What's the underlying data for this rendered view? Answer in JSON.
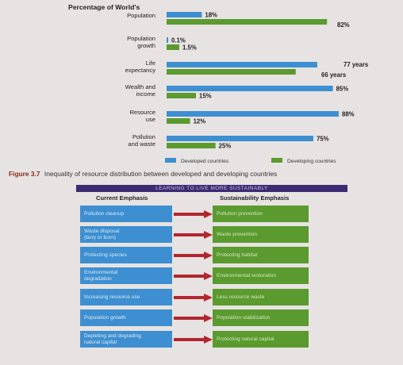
{
  "chart_data": {
    "type": "bar",
    "orientation": "horizontal",
    "title": "Percentage of World's",
    "categories": [
      "Population",
      "Population\ngrowth",
      "Life\nexpectancy",
      "Wealth and\nincome",
      "Resource\nuse",
      "Pollution\nand waste"
    ],
    "series": [
      {
        "name": "Developed countries",
        "color": "#3d8fd1",
        "values": [
          18,
          0.1,
          77,
          85,
          88,
          75
        ],
        "labels": [
          "18%",
          "0.1%",
          "77 years",
          "85%",
          "88%",
          "75%"
        ]
      },
      {
        "name": "Developing countries",
        "color": "#5a9a2f",
        "values": [
          82,
          1.5,
          66,
          15,
          12,
          25
        ],
        "labels": [
          "82%",
          "1.5%",
          "66 years",
          "15%",
          "12%",
          "25%"
        ]
      }
    ],
    "legend_position": "bottom"
  },
  "figure_caption": {
    "number": "Figure 3.7",
    "text": "Inequality of resource distribution between developed and developing countries"
  },
  "diagram": {
    "banner": "LEARNING TO LIVE MORE SUSTAINABLY",
    "current_heading": "Current Emphasis",
    "sustainability_heading": "Sustainability Emphasis",
    "rows": [
      {
        "current": "Pollution cleanup",
        "sustainable": "Pollution prevention"
      },
      {
        "current": "Waste disposal\n(bury or burn)",
        "sustainable": "Waste prevention"
      },
      {
        "current": "Protecting species",
        "sustainable": "Protecting habitat"
      },
      {
        "current": "Environmental\ndegradation",
        "sustainable": "Environmental restoration"
      },
      {
        "current": "Increasing resource use",
        "sustainable": "Less resource waste"
      },
      {
        "current": "Population growth",
        "sustainable": "Population stabilization"
      },
      {
        "current": "Depleting and degrading\nnatural capital",
        "sustainable": "Protecting natural capital"
      }
    ],
    "colors": {
      "current": "#3d8fd1",
      "sustainable": "#5a9a2f",
      "arrow": "#b2262e",
      "banner": "#3c2a73"
    }
  }
}
